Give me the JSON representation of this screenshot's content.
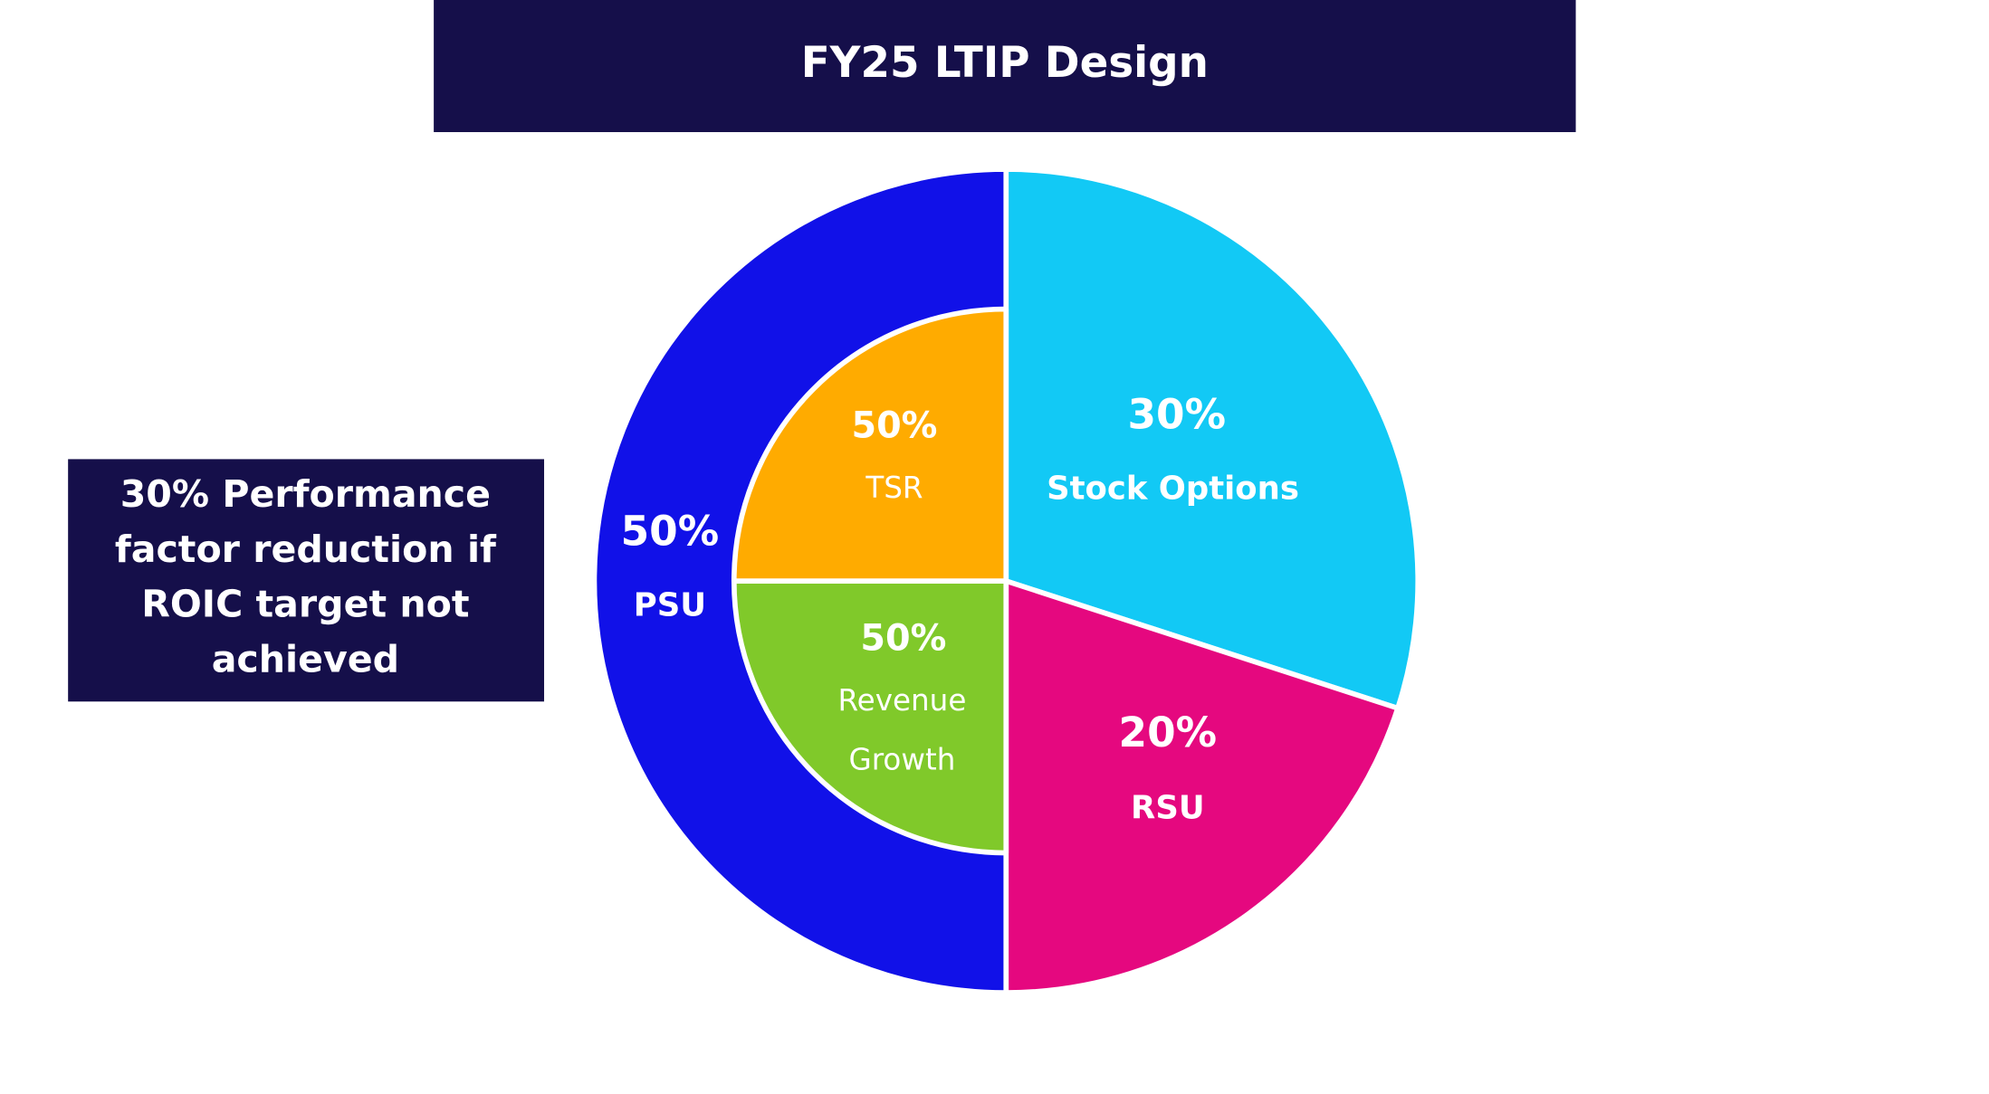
{
  "chart_data": {
    "type": "pie",
    "title": "FY25 LTIP Design",
    "outer": [
      {
        "pct": "30%",
        "label": "Stock Options",
        "value": 30,
        "color": "#12c9f5"
      },
      {
        "pct": "20%",
        "label": "RSU",
        "value": 20,
        "color": "#e5087f"
      },
      {
        "pct": "50%",
        "label": "PSU",
        "value": 50,
        "color": "#1111e8"
      }
    ],
    "inner": [
      {
        "pct": "50%",
        "label": "Revenue Growth",
        "line1": "Revenue",
        "line2": "Growth",
        "value": 50,
        "color": "#80c92a"
      },
      {
        "pct": "50%",
        "label": "TSR",
        "value": 50,
        "color": "#ffab00"
      }
    ],
    "inner_parent": "PSU"
  },
  "note": {
    "lines": [
      "30% Performance",
      "factor reduction if",
      "ROIC target not",
      "achieved"
    ]
  },
  "colors": {
    "header_bg": "#150f4a",
    "note_bg": "#150f4a"
  }
}
